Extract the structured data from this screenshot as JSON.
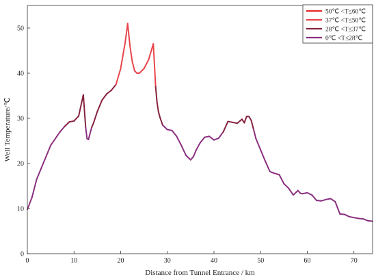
{
  "chart_data": {
    "type": "line",
    "title": "",
    "xlabel": "Distance from Tunnel Entrance / km",
    "ylabel": "Well Temperature/℃",
    "xlim": [
      0,
      74
    ],
    "ylim": [
      0,
      55
    ],
    "xticks": [
      0,
      10,
      20,
      30,
      40,
      50,
      60,
      70
    ],
    "yticks": [
      0,
      10,
      20,
      30,
      40,
      50
    ],
    "grid": false,
    "legend_position": "top-right",
    "legend": [
      {
        "label": "50℃ <T≤60℃",
        "color": "#e8292c",
        "min": 50,
        "max": 60
      },
      {
        "label": "37℃ <T≤50℃",
        "color": "#e8454b",
        "min": 37,
        "max": 50
      },
      {
        "label": "28℃ <T≤37℃",
        "color": "#86233e",
        "min": 28,
        "max": 37
      },
      {
        "label": "0℃ <T≤28℃",
        "color": "#8a2f7f",
        "min": 0,
        "max": 28
      }
    ],
    "x": [
      0,
      1,
      2,
      3,
      4,
      5,
      6,
      7,
      8,
      9,
      10,
      11,
      12,
      12.5,
      12.8,
      13.1,
      13.4,
      13.8,
      14.2,
      15,
      16,
      17,
      18,
      19,
      20,
      21,
      21.5,
      22,
      22.5,
      23,
      23.5,
      24,
      25,
      26,
      27,
      27.5,
      27.8,
      28.1,
      28.4,
      29,
      30,
      31,
      32,
      33,
      34,
      35,
      35.6,
      36.2,
      37,
      38,
      39,
      40,
      41,
      42,
      43,
      44,
      45,
      46,
      46.5,
      47,
      47.5,
      48,
      48.5,
      49,
      50,
      51,
      52,
      53,
      54,
      55,
      56,
      57,
      58,
      58.5,
      59,
      60,
      61,
      62,
      63,
      64,
      65,
      66,
      67,
      68,
      69,
      70,
      71,
      72,
      73,
      74
    ],
    "values": [
      9.8,
      12.5,
      16.5,
      19,
      21.5,
      24,
      25.5,
      27,
      28.2,
      29.2,
      29.4,
      30.5,
      35.2,
      28,
      25.5,
      25.3,
      26.5,
      28,
      29,
      31.5,
      34,
      35.4,
      36.2,
      37.5,
      41,
      47,
      51,
      46,
      42.5,
      40.5,
      40,
      40,
      41,
      43,
      46.5,
      37,
      33.5,
      31.5,
      30.3,
      28.5,
      27.5,
      27.3,
      26,
      24,
      21.8,
      20.8,
      21.5,
      23,
      24.5,
      25.8,
      26,
      25.2,
      25.6,
      27,
      29.3,
      29.1,
      28.9,
      29.8,
      29,
      30.4,
      30.4,
      29.5,
      27.5,
      25.5,
      23,
      20.5,
      18.2,
      17.8,
      17.5,
      15.5,
      14.5,
      13,
      14,
      13.4,
      13.3,
      13.5,
      13,
      11.8,
      11.7,
      12,
      12.2,
      11.5,
      8.8,
      8.7,
      8.2,
      8,
      7.8,
      7.7,
      7.3,
      7.2
    ]
  }
}
